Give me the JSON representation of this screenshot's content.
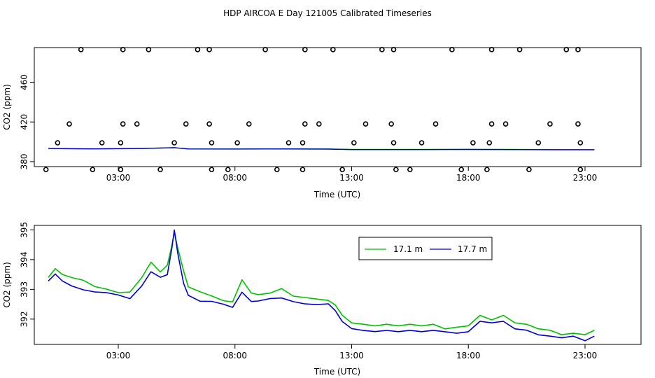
{
  "title": "HDP AIRCOA E  Day 121005  Calibrated Timeseries",
  "colors": {
    "series_green": "#00c000",
    "series_blue": "#0000cc",
    "axis": "#000000",
    "background": "#ffffff"
  },
  "chart_data": [
    {
      "type": "scatter",
      "xlabel": "Time (UTC)",
      "ylabel": "CO2 (ppm)",
      "xlim": [
        -0.6,
        25.4
      ],
      "ylim": [
        375,
        495
      ],
      "xticks": [
        3,
        8,
        13,
        18,
        23
      ],
      "xtick_labels": [
        "03:00",
        "08:00",
        "13:00",
        "18:00",
        "23:00"
      ],
      "yticks": [
        380,
        420,
        460
      ],
      "ytick_labels": [
        "380",
        "420",
        "460"
      ],
      "points": [
        {
          "x": 1.4,
          "y": 493
        },
        {
          "x": 3.2,
          "y": 493
        },
        {
          "x": 4.3,
          "y": 493
        },
        {
          "x": 6.4,
          "y": 493
        },
        {
          "x": 6.9,
          "y": 493
        },
        {
          "x": 9.3,
          "y": 493
        },
        {
          "x": 11.0,
          "y": 493
        },
        {
          "x": 12.2,
          "y": 493
        },
        {
          "x": 14.3,
          "y": 493
        },
        {
          "x": 14.8,
          "y": 493
        },
        {
          "x": 17.3,
          "y": 493
        },
        {
          "x": 19.0,
          "y": 493
        },
        {
          "x": 20.2,
          "y": 493
        },
        {
          "x": 22.2,
          "y": 493
        },
        {
          "x": 22.7,
          "y": 493
        },
        {
          "x": 0.9,
          "y": 418
        },
        {
          "x": 3.2,
          "y": 418
        },
        {
          "x": 3.8,
          "y": 418
        },
        {
          "x": 5.9,
          "y": 418
        },
        {
          "x": 6.9,
          "y": 418
        },
        {
          "x": 8.6,
          "y": 418
        },
        {
          "x": 11.0,
          "y": 418
        },
        {
          "x": 11.6,
          "y": 418
        },
        {
          "x": 13.6,
          "y": 418
        },
        {
          "x": 14.7,
          "y": 418
        },
        {
          "x": 16.6,
          "y": 418
        },
        {
          "x": 19.0,
          "y": 418
        },
        {
          "x": 19.6,
          "y": 418
        },
        {
          "x": 21.5,
          "y": 418
        },
        {
          "x": 22.7,
          "y": 418
        },
        {
          "x": 0.4,
          "y": 399
        },
        {
          "x": 2.3,
          "y": 399
        },
        {
          "x": 3.1,
          "y": 399
        },
        {
          "x": 5.4,
          "y": 399
        },
        {
          "x": 7.0,
          "y": 399
        },
        {
          "x": 8.1,
          "y": 399
        },
        {
          "x": 10.3,
          "y": 399
        },
        {
          "x": 10.9,
          "y": 399
        },
        {
          "x": 13.1,
          "y": 399
        },
        {
          "x": 14.8,
          "y": 399
        },
        {
          "x": 16.0,
          "y": 399
        },
        {
          "x": 18.2,
          "y": 399
        },
        {
          "x": 18.9,
          "y": 399
        },
        {
          "x": 21.0,
          "y": 399
        },
        {
          "x": 22.8,
          "y": 399
        },
        {
          "x": -0.1,
          "y": 372
        },
        {
          "x": 1.9,
          "y": 372
        },
        {
          "x": 3.1,
          "y": 372
        },
        {
          "x": 4.8,
          "y": 372
        },
        {
          "x": 7.0,
          "y": 372
        },
        {
          "x": 7.7,
          "y": 372
        },
        {
          "x": 9.8,
          "y": 372
        },
        {
          "x": 10.9,
          "y": 372
        },
        {
          "x": 12.6,
          "y": 372
        },
        {
          "x": 14.9,
          "y": 372
        },
        {
          "x": 15.5,
          "y": 372
        },
        {
          "x": 17.7,
          "y": 372
        },
        {
          "x": 18.8,
          "y": 372
        },
        {
          "x": 20.6,
          "y": 372
        },
        {
          "x": 22.8,
          "y": 372
        }
      ],
      "series": [
        {
          "name": "17.1 m",
          "x": [
            0.0,
            2,
            4,
            5.4,
            6,
            8,
            10,
            12,
            13,
            16,
            18,
            20,
            22,
            23.4
          ],
          "values": [
            393.4,
            392.9,
            393.5,
            394.9,
            392.8,
            392.6,
            392.9,
            392.6,
            391.8,
            391.8,
            392.0,
            391.8,
            391.5,
            391.5
          ]
        },
        {
          "name": "17.7 m",
          "x": [
            0.0,
            2,
            4,
            5.4,
            6,
            8,
            10,
            12,
            13,
            16,
            18,
            20,
            22,
            23.4
          ],
          "values": [
            393.3,
            392.8,
            393.3,
            394.8,
            392.6,
            392.5,
            392.7,
            392.4,
            391.6,
            391.6,
            391.8,
            391.6,
            391.4,
            391.4
          ]
        }
      ]
    },
    {
      "type": "line",
      "xlabel": "Time (UTC)",
      "ylabel": "CO2 (ppm)",
      "xlim": [
        -0.6,
        25.4
      ],
      "ylim": [
        391.15,
        395.15
      ],
      "xticks": [
        3,
        8,
        13,
        18,
        23
      ],
      "xtick_labels": [
        "03:00",
        "08:00",
        "13:00",
        "18:00",
        "23:00"
      ],
      "yticks": [
        392,
        393,
        394,
        395
      ],
      "ytick_labels": [
        "392",
        "393",
        "394",
        "395"
      ],
      "legend": {
        "position": "top-right",
        "entries": [
          "17.1 m",
          "17.7 m"
        ]
      },
      "series": [
        {
          "name": "17.1 m",
          "x": [
            0.0,
            0.3,
            0.6,
            1.0,
            1.5,
            2.0,
            2.5,
            3.0,
            3.5,
            4.0,
            4.4,
            4.8,
            5.1,
            5.3,
            5.4,
            5.55,
            5.8,
            6.0,
            6.5,
            7.0,
            7.5,
            7.9,
            8.3,
            8.7,
            9.0,
            9.5,
            10.0,
            10.5,
            11.0,
            11.5,
            12.0,
            12.3,
            12.6,
            13.0,
            13.5,
            14.0,
            14.5,
            15.0,
            15.5,
            16.0,
            16.5,
            17.0,
            17.5,
            18.0,
            18.5,
            19.0,
            19.5,
            20.0,
            20.5,
            21.0,
            21.5,
            22.0,
            22.5,
            23.0,
            23.4
          ],
          "values": [
            393.4,
            393.7,
            393.5,
            393.4,
            393.3,
            393.1,
            393.0,
            392.9,
            392.9,
            393.4,
            393.9,
            393.6,
            393.8,
            394.5,
            394.9,
            394.4,
            393.6,
            393.1,
            392.9,
            392.8,
            392.6,
            392.6,
            393.3,
            392.9,
            392.8,
            392.9,
            393.0,
            392.8,
            392.7,
            392.7,
            392.6,
            392.5,
            392.1,
            391.9,
            391.8,
            391.8,
            391.8,
            391.8,
            391.8,
            391.8,
            391.8,
            391.7,
            391.7,
            391.8,
            392.1,
            392.0,
            392.1,
            391.9,
            391.8,
            391.7,
            391.6,
            391.5,
            391.5,
            391.5,
            391.6
          ]
        },
        {
          "name": "17.7 m",
          "x": [
            0.0,
            0.3,
            0.6,
            1.0,
            1.5,
            2.0,
            2.5,
            3.0,
            3.5,
            4.0,
            4.4,
            4.8,
            5.1,
            5.3,
            5.4,
            5.55,
            5.8,
            6.0,
            6.5,
            7.0,
            7.5,
            7.9,
            8.3,
            8.7,
            9.0,
            9.5,
            10.0,
            10.5,
            11.0,
            11.5,
            12.0,
            12.3,
            12.6,
            13.0,
            13.5,
            14.0,
            14.5,
            15.0,
            15.5,
            16.0,
            16.5,
            17.0,
            17.5,
            18.0,
            18.5,
            19.0,
            19.5,
            20.0,
            20.5,
            21.0,
            21.5,
            22.0,
            22.5,
            23.0,
            23.4
          ],
          "values": [
            393.3,
            393.5,
            393.3,
            393.1,
            393.0,
            392.9,
            392.9,
            392.8,
            392.7,
            393.1,
            393.6,
            393.4,
            393.5,
            394.4,
            395.0,
            394.2,
            393.2,
            392.8,
            392.6,
            392.6,
            392.5,
            392.4,
            392.9,
            392.6,
            392.6,
            392.7,
            392.7,
            392.6,
            392.5,
            392.5,
            392.5,
            392.3,
            391.9,
            391.7,
            391.6,
            391.6,
            391.6,
            391.6,
            391.6,
            391.6,
            391.6,
            391.6,
            391.5,
            391.6,
            391.9,
            391.9,
            391.9,
            391.7,
            391.6,
            391.5,
            391.4,
            391.4,
            391.4,
            391.3,
            391.4
          ]
        }
      ]
    }
  ]
}
